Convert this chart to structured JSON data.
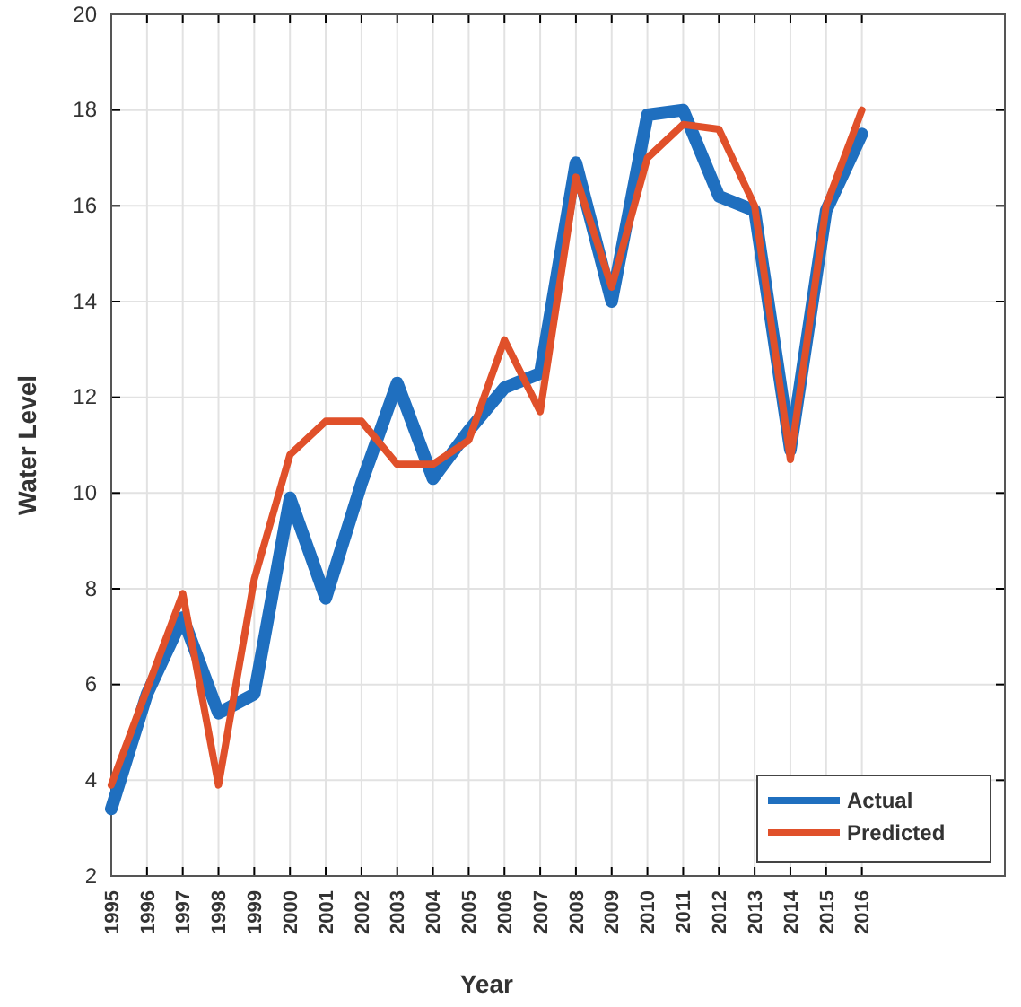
{
  "chart_data": {
    "type": "line",
    "xlabel": "Year",
    "ylabel": "Water Level",
    "x": [
      1995,
      1996,
      1997,
      1998,
      1999,
      2000,
      2001,
      2002,
      2003,
      2004,
      2005,
      2006,
      2007,
      2008,
      2009,
      2010,
      2011,
      2012,
      2013,
      2014,
      2015,
      2016
    ],
    "series": [
      {
        "name": "Actual",
        "color": "#1f6fbf",
        "values": [
          3.4,
          5.8,
          7.4,
          5.4,
          5.8,
          9.9,
          7.8,
          10.2,
          12.3,
          10.3,
          11.3,
          12.2,
          12.5,
          16.9,
          14.0,
          17.9,
          18.0,
          16.2,
          15.9,
          10.9,
          15.9,
          17.5
        ]
      },
      {
        "name": "Predicted",
        "color": "#e0502a",
        "values": [
          3.9,
          5.9,
          7.9,
          3.9,
          8.2,
          10.8,
          11.5,
          11.5,
          10.6,
          10.6,
          11.1,
          13.2,
          11.7,
          16.6,
          14.3,
          17.0,
          17.7,
          17.6,
          16.0,
          10.7,
          16.0,
          18.0
        ]
      }
    ],
    "xlim": [
      1995,
      2020
    ],
    "xticks": [
      1995,
      1996,
      1997,
      1998,
      1999,
      2000,
      2001,
      2002,
      2003,
      2004,
      2005,
      2006,
      2007,
      2008,
      2009,
      2010,
      2011,
      2012,
      2013,
      2014,
      2015,
      2016
    ],
    "ylim": [
      2,
      20
    ],
    "yticks": [
      2,
      4,
      6,
      8,
      10,
      12,
      14,
      16,
      18,
      20
    ],
    "grid": true,
    "legend": "bottom right",
    "marker": "none",
    "line_style": "solid"
  }
}
